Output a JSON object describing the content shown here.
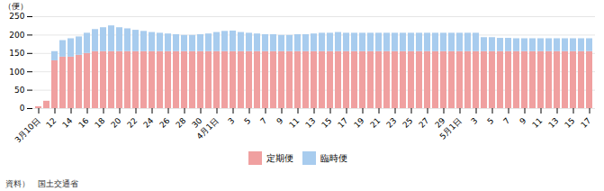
{
  "chart_data": {
    "type": "bar",
    "stacked": true,
    "y_label": "（便）",
    "source": "資料）　国土交通省",
    "categories": [
      "3月10日",
      null,
      "12",
      null,
      "14",
      null,
      "16",
      null,
      "18",
      null,
      "20",
      null,
      "22",
      null,
      "24",
      null,
      "26",
      null,
      "28",
      null,
      "30",
      null,
      "4月1日",
      null,
      "3",
      null,
      "5",
      null,
      "7",
      null,
      "9",
      null,
      "11",
      null,
      "13",
      null,
      "15",
      null,
      "17",
      null,
      "19",
      null,
      "21",
      null,
      "23",
      null,
      "25",
      null,
      "27",
      null,
      "29",
      null,
      "5月1日",
      null,
      "3",
      null,
      "5",
      null,
      "7",
      null,
      "9",
      null,
      "11",
      null,
      "13",
      null,
      "15",
      null,
      "17"
    ],
    "series": [
      {
        "name": "定期便",
        "color": "#f0a0a0",
        "values": [
          5,
          20,
          130,
          140,
          140,
          145,
          150,
          155,
          155,
          155,
          155,
          155,
          155,
          155,
          155,
          155,
          155,
          155,
          155,
          155,
          155,
          155,
          155,
          155,
          155,
          155,
          155,
          155,
          155,
          155,
          155,
          155,
          155,
          155,
          155,
          155,
          155,
          155,
          155,
          155,
          155,
          155,
          155,
          155,
          155,
          155,
          155,
          155,
          155,
          155,
          155,
          155,
          155,
          155,
          155,
          155,
          155,
          155,
          155,
          155,
          155,
          155,
          155,
          155,
          155,
          155,
          155,
          155,
          155
        ]
      },
      {
        "name": "臨時便",
        "color": "#a8ccee",
        "values": [
          0,
          0,
          25,
          45,
          50,
          50,
          55,
          60,
          65,
          70,
          65,
          62,
          58,
          55,
          52,
          50,
          48,
          46,
          44,
          44,
          46,
          48,
          52,
          55,
          56,
          52,
          50,
          48,
          46,
          46,
          44,
          44,
          46,
          46,
          48,
          50,
          50,
          52,
          50,
          50,
          50,
          50,
          50,
          50,
          50,
          50,
          50,
          50,
          50,
          50,
          50,
          50,
          50,
          50,
          50,
          38,
          38,
          36,
          36,
          35,
          35,
          35,
          35,
          35,
          35,
          35,
          35,
          35,
          35
        ]
      }
    ],
    "ylim": [
      0,
      250
    ],
    "yticks": [
      0,
      50,
      100,
      150,
      200,
      250
    ],
    "grid": true,
    "legend": "bottom"
  }
}
